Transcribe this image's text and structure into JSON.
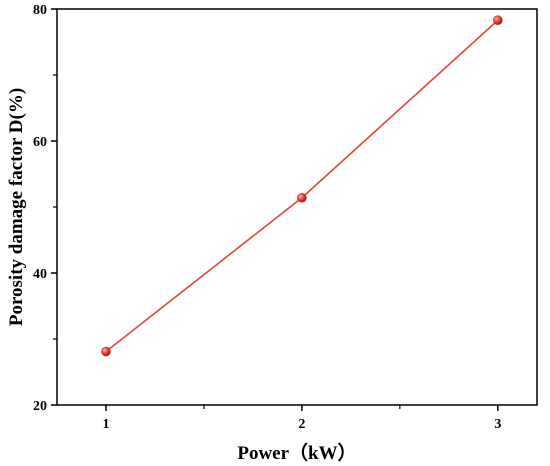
{
  "chart_data": {
    "type": "line",
    "xlabel": "Power（kW）",
    "ylabel": "Porosity damage factor D(%)",
    "xlim": [
      0.75,
      3.2
    ],
    "ylim": [
      20,
      80
    ],
    "x_ticks": [
      1,
      2,
      3
    ],
    "x_tick_labels": [
      "1",
      "2",
      "3"
    ],
    "x_minor_ticks": [
      1.5,
      2.5
    ],
    "y_ticks": [
      20,
      40,
      60,
      80
    ],
    "y_tick_labels": [
      "20",
      "40",
      "60",
      "80"
    ],
    "y_minor_ticks": [
      30,
      50,
      70
    ],
    "grid": false,
    "series": [
      {
        "x": [
          1,
          2,
          3
        ],
        "y": [
          28.1,
          51.4,
          78.3
        ],
        "color": "#e8413a",
        "marker": "circle"
      }
    ]
  }
}
